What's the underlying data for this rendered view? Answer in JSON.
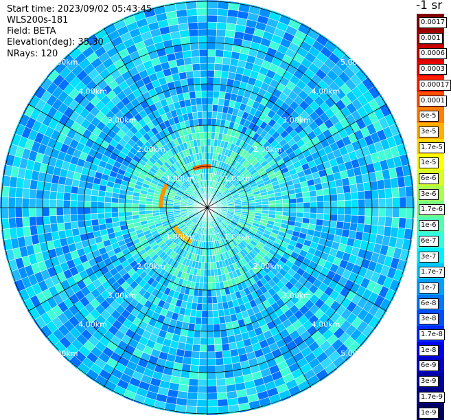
{
  "info": {
    "start_time": "Start time: 2023/09/02 05:43:45",
    "instrument": "WLS200s-181",
    "field": "Field: BETA",
    "elevation": "Elevation(deg): 35.30",
    "nrays": "NRays: 120"
  },
  "ring_labels": [
    "1.00km",
    "2.00km",
    "3.00km",
    "4.00km",
    "5.00km"
  ],
  "colorbar": {
    "unit": "-1 sr",
    "ticks": [
      "0.0017",
      "0.001",
      "0.0006",
      "0.0003",
      "0.00017",
      "0.0001",
      "6e-5",
      "3e-5",
      "1.7e-5",
      "1e-5",
      "6e-6",
      "3e-6",
      "1.7e-6",
      "1e-6",
      "6e-7",
      "3e-7",
      "1.7e-7",
      "1e-7",
      "6e-8",
      "3e-8",
      "1.7e-8",
      "1e-8",
      "6e-9",
      "3e-9",
      "1.7e-9",
      "1e-9"
    ],
    "colors": [
      "#800000",
      "#a00000",
      "#c80000",
      "#e60000",
      "#ff2000",
      "#ff5000",
      "#ff8000",
      "#ffb000",
      "#ffd800",
      "#ffff00",
      "#d8ff20",
      "#a8ff50",
      "#78ff80",
      "#50ffb0",
      "#30ffe0",
      "#00f0ff",
      "#00c8ff",
      "#00a0ff",
      "#0078ff",
      "#0050ff",
      "#0028ff",
      "#0000f0",
      "#0000c8",
      "#0000a0",
      "#000080",
      "#000060"
    ]
  }
}
